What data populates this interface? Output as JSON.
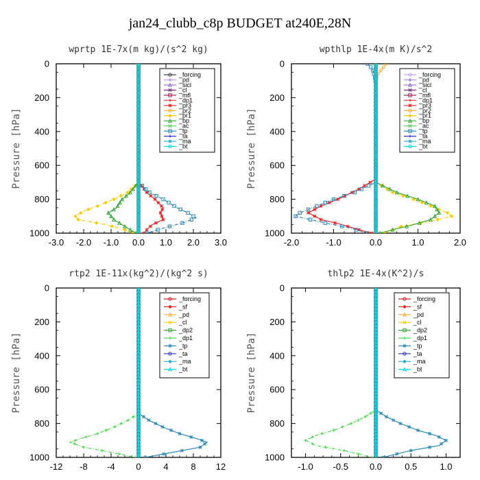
{
  "figure_title": "jan24_clubb_c8p  BUDGET at240E,28N",
  "chart_data": [
    {
      "type": "line",
      "title": "wprtp  1E-7x(m kg)/(s^2 kg)",
      "ylabel": "Pressure [hPa]",
      "xlim": [
        -3,
        3
      ],
      "ylim": [
        0,
        1000
      ],
      "xticks": [
        "-3.0",
        "-2.0",
        "-1.0",
        "0.0",
        "1.0",
        "2.0",
        "3.0"
      ],
      "xtick_values": [
        -3,
        -2,
        -1,
        0,
        1,
        2,
        3
      ],
      "yticks": [
        "0",
        "200",
        "400",
        "600",
        "800",
        "1000"
      ],
      "ytick_values": [
        0,
        200,
        400,
        600,
        800,
        1000
      ],
      "grid": false,
      "legend_position": "top-right",
      "series": [
        {
          "name": "_forcing",
          "color": "#444444",
          "y": [
            0,
            1000
          ],
          "x": [
            0,
            0
          ]
        },
        {
          "name": "_pd",
          "color": "#c8a0e8",
          "y": [
            0,
            1000
          ],
          "x": [
            0,
            0
          ]
        },
        {
          "name": "_sicl",
          "color": "#9966cc",
          "y": [
            0,
            1000
          ],
          "x": [
            0,
            0
          ]
        },
        {
          "name": "_cl",
          "color": "#7a2a7a",
          "y": [
            0,
            1000
          ],
          "x": [
            0,
            0
          ]
        },
        {
          "name": "_mfl",
          "color": "#aa2255",
          "y": [
            0,
            1000
          ],
          "x": [
            0,
            0
          ]
        },
        {
          "name": "_dp1",
          "color": "#dd3333",
          "y": [
            0,
            1000
          ],
          "x": [
            0,
            0
          ]
        },
        {
          "name": "_pr3",
          "color": "#ee2222",
          "y": [
            0,
            700,
            760,
            800,
            850,
            880,
            920,
            950,
            980,
            1000
          ],
          "x": [
            0,
            0,
            0.3,
            0.6,
            0.9,
            0.8,
            0.9,
            0.5,
            0.3,
            0.2
          ]
        },
        {
          "name": "_pr2",
          "color": "#ffaa33",
          "y": [
            0,
            1000
          ],
          "x": [
            0,
            0
          ]
        },
        {
          "name": "_pr1",
          "color": "#ffcc00",
          "y": [
            0,
            700,
            760,
            800,
            840,
            870,
            900,
            920,
            950,
            980,
            1000
          ],
          "x": [
            0,
            0,
            -0.4,
            -0.9,
            -1.5,
            -2.0,
            -2.3,
            -2.2,
            -1.2,
            -0.5,
            -0.2
          ]
        },
        {
          "name": "_bp",
          "color": "#33aa33",
          "y": [
            0,
            700,
            760,
            800,
            850,
            880,
            920,
            950,
            980,
            1000
          ],
          "x": [
            0,
            0,
            -0.3,
            -0.6,
            -0.8,
            -1.1,
            -0.9,
            -0.6,
            -0.3,
            -0.1
          ]
        },
        {
          "name": "_ac",
          "color": "#55cc55",
          "y": [
            0,
            1000
          ],
          "x": [
            0,
            0
          ]
        },
        {
          "name": "_tp",
          "color": "#2a8ab8",
          "y": [
            0,
            700,
            760,
            800,
            850,
            880,
            910,
            940,
            970,
            1000
          ],
          "x": [
            0,
            0,
            0.4,
            0.9,
            1.4,
            1.8,
            2.1,
            1.6,
            0.9,
            0.3
          ]
        },
        {
          "name": "_ta",
          "color": "#3333cc",
          "y": [
            0,
            1000
          ],
          "x": [
            0,
            0
          ]
        },
        {
          "name": "_ma",
          "color": "#22aacc",
          "y": [
            0,
            1000
          ],
          "x": [
            0,
            0
          ]
        },
        {
          "name": "_bt",
          "color": "#00dddd",
          "y": [
            0,
            1000
          ],
          "x": [
            0,
            0
          ]
        }
      ]
    },
    {
      "type": "line",
      "title": "wpthlp  1E-4x(m K)/s^2",
      "ylabel": "Pressure [hPa]",
      "xlim": [
        -2,
        2
      ],
      "ylim": [
        0,
        1000
      ],
      "xticks": [
        "-2.0",
        "-1.0",
        "0.0",
        "1.0",
        "2.0"
      ],
      "xtick_values": [
        -2,
        -1,
        0,
        1,
        2
      ],
      "yticks": [
        "0",
        "200",
        "400",
        "600",
        "800",
        "1000"
      ],
      "ytick_values": [
        0,
        200,
        400,
        600,
        800,
        1000
      ],
      "grid": false,
      "legend_position": "top-right",
      "series": [
        {
          "name": "_forcing",
          "color": "#c8a0e8",
          "y": [
            0,
            1000
          ],
          "x": [
            0,
            0
          ]
        },
        {
          "name": "_pd",
          "color": "#b090e0",
          "y": [
            0,
            1000
          ],
          "x": [
            0,
            0
          ]
        },
        {
          "name": "_sicl",
          "color": "#9966cc",
          "y": [
            0,
            1000
          ],
          "x": [
            0,
            0
          ]
        },
        {
          "name": "_cl",
          "color": "#7a2a7a",
          "y": [
            0,
            1000
          ],
          "x": [
            0,
            0
          ]
        },
        {
          "name": "_mfl",
          "color": "#aa2255",
          "y": [
            0,
            1000
          ],
          "x": [
            0,
            0
          ]
        },
        {
          "name": "_dp1",
          "color": "#dd3333",
          "y": [
            0,
            1000
          ],
          "x": [
            0,
            0
          ]
        },
        {
          "name": "_pr3",
          "color": "#ee2222",
          "y": [
            0,
            680,
            740,
            800,
            840,
            880,
            920,
            950,
            980,
            1000
          ],
          "x": [
            0,
            0,
            -0.4,
            -0.9,
            -1.3,
            -1.6,
            -1.3,
            -0.8,
            -0.4,
            -0.1
          ]
        },
        {
          "name": "_pr2",
          "color": "#ffaa33",
          "y": [
            0,
            30,
            60,
            100,
            1000
          ],
          "x": [
            0.25,
            0.15,
            0.05,
            0,
            0
          ]
        },
        {
          "name": "_pr1",
          "color": "#ffcc00",
          "y": [
            0,
            700,
            760,
            800,
            850,
            880,
            900,
            930,
            960,
            1000
          ],
          "x": [
            0,
            0,
            0.4,
            0.9,
            1.4,
            1.7,
            1.8,
            1.3,
            0.6,
            0.2
          ]
        },
        {
          "name": "_bp",
          "color": "#33aa33",
          "y": [
            0,
            700,
            760,
            800,
            840,
            880,
            920,
            950,
            980,
            1000
          ],
          "x": [
            0,
            0,
            0.5,
            1.0,
            1.4,
            1.5,
            1.3,
            0.9,
            0.4,
            0.1
          ]
        },
        {
          "name": "_ac",
          "color": "#55cc55",
          "y": [
            0,
            1000
          ],
          "x": [
            0,
            0
          ]
        },
        {
          "name": "_tp",
          "color": "#2a8ab8",
          "y": [
            0,
            30,
            80,
            120,
            700,
            760,
            800,
            850,
            880,
            900,
            940,
            970,
            1000
          ],
          "x": [
            -0.2,
            -0.08,
            -0.02,
            0,
            0,
            -0.5,
            -1.0,
            -1.5,
            -1.8,
            -1.9,
            -1.2,
            -0.6,
            -0.2
          ]
        },
        {
          "name": "_ta",
          "color": "#3333cc",
          "y": [
            0,
            1000
          ],
          "x": [
            0,
            0
          ]
        },
        {
          "name": "_ma",
          "color": "#22aacc",
          "y": [
            0,
            1000
          ],
          "x": [
            0,
            0
          ]
        },
        {
          "name": "_bt",
          "color": "#00dddd",
          "y": [
            0,
            1000
          ],
          "x": [
            0,
            0
          ]
        }
      ]
    },
    {
      "type": "line",
      "title": "rtp2  1E-11x(kg^2)/(kg^2 s)",
      "ylabel": "Pressure [hPa]",
      "xlim": [
        -12,
        12
      ],
      "ylim": [
        0,
        1000
      ],
      "xticks": [
        "-12",
        "-8",
        "-4",
        "0",
        "4",
        "8",
        "12"
      ],
      "xtick_values": [
        -12,
        -8,
        -4,
        0,
        4,
        8,
        12
      ],
      "yticks": [
        "0",
        "200",
        "400",
        "600",
        "800",
        "1000"
      ],
      "ytick_values": [
        0,
        200,
        400,
        600,
        800,
        1000
      ],
      "grid": false,
      "legend_position": "top-right",
      "series": [
        {
          "name": "_forcing",
          "color": "#cc2222",
          "y": [
            0,
            1000
          ],
          "x": [
            0,
            0
          ]
        },
        {
          "name": "_sf",
          "color": "#ee2222",
          "y": [
            0,
            1000
          ],
          "x": [
            0,
            0
          ]
        },
        {
          "name": "_pd",
          "color": "#ffaa33",
          "y": [
            0,
            1000
          ],
          "x": [
            0,
            0
          ]
        },
        {
          "name": "_cl",
          "color": "#ffcc00",
          "y": [
            0,
            1000
          ],
          "x": [
            0,
            0
          ]
        },
        {
          "name": "_dp2",
          "color": "#33aa33",
          "y": [
            0,
            1000
          ],
          "x": [
            0,
            0
          ]
        },
        {
          "name": "_dp1",
          "color": "#44dd44",
          "y": [
            0,
            740,
            780,
            820,
            860,
            890,
            910,
            940,
            970,
            1000
          ],
          "x": [
            0,
            0,
            -1.5,
            -3.5,
            -6.0,
            -8.5,
            -10.0,
            -8.0,
            -4.0,
            -0.5
          ]
        },
        {
          "name": "_tp",
          "color": "#2a8ab8",
          "y": [
            0,
            740,
            780,
            820,
            860,
            890,
            910,
            940,
            970,
            1000
          ],
          "x": [
            0,
            0,
            1.5,
            3.5,
            6.0,
            8.5,
            10.0,
            9.0,
            5.0,
            1.0
          ]
        },
        {
          "name": "_ta",
          "color": "#3333cc",
          "y": [
            0,
            1000
          ],
          "x": [
            0,
            0
          ]
        },
        {
          "name": "_ma",
          "color": "#22aacc",
          "y": [
            0,
            1000
          ],
          "x": [
            0,
            0
          ]
        },
        {
          "name": "_bt",
          "color": "#00dddd",
          "y": [
            0,
            1000
          ],
          "x": [
            0,
            0
          ]
        }
      ]
    },
    {
      "type": "line",
      "title": "thlp2  1E-4x(K^2)/s",
      "ylabel": "Pressure [hPa]",
      "xlim": [
        -1.2,
        1.2
      ],
      "ylim": [
        0,
        1000
      ],
      "xticks": [
        "-1.0",
        "-0.5",
        "0.0",
        "0.5",
        "1.0"
      ],
      "xtick_values": [
        -1.0,
        -0.5,
        0.0,
        0.5,
        1.0
      ],
      "yticks": [
        "0",
        "200",
        "400",
        "600",
        "800",
        "1000"
      ],
      "ytick_values": [
        0,
        200,
        400,
        600,
        800,
        1000
      ],
      "grid": false,
      "legend_position": "top-right",
      "series": [
        {
          "name": "_forcing",
          "color": "#cc2222",
          "y": [
            0,
            1000
          ],
          "x": [
            0,
            0
          ]
        },
        {
          "name": "_sf",
          "color": "#ee2222",
          "y": [
            0,
            1000
          ],
          "x": [
            0,
            0
          ]
        },
        {
          "name": "_pd",
          "color": "#ffaa33",
          "y": [
            0,
            1000
          ],
          "x": [
            0,
            0
          ]
        },
        {
          "name": "_cl",
          "color": "#ffcc00",
          "y": [
            0,
            1000
          ],
          "x": [
            0,
            0
          ]
        },
        {
          "name": "_dp2",
          "color": "#33aa33",
          "y": [
            0,
            1000
          ],
          "x": [
            0,
            0
          ]
        },
        {
          "name": "_dp1",
          "color": "#44dd44",
          "y": [
            0,
            720,
            760,
            800,
            840,
            870,
            900,
            930,
            960,
            1000
          ],
          "x": [
            0,
            0,
            -0.15,
            -0.35,
            -0.6,
            -0.85,
            -1.0,
            -0.85,
            -0.45,
            -0.05
          ]
        },
        {
          "name": "_tp",
          "color": "#2a8ab8",
          "y": [
            0,
            720,
            760,
            800,
            840,
            870,
            900,
            930,
            960,
            1000
          ],
          "x": [
            0,
            0,
            0.15,
            0.35,
            0.6,
            0.85,
            1.0,
            0.9,
            0.5,
            0.1
          ]
        },
        {
          "name": "_ta",
          "color": "#3333cc",
          "y": [
            0,
            1000
          ],
          "x": [
            0,
            0
          ]
        },
        {
          "name": "_ma",
          "color": "#22aacc",
          "y": [
            0,
            1000
          ],
          "x": [
            0,
            0
          ]
        },
        {
          "name": "_bt",
          "color": "#00dddd",
          "y": [
            0,
            1000
          ],
          "x": [
            0,
            0
          ]
        }
      ]
    }
  ]
}
